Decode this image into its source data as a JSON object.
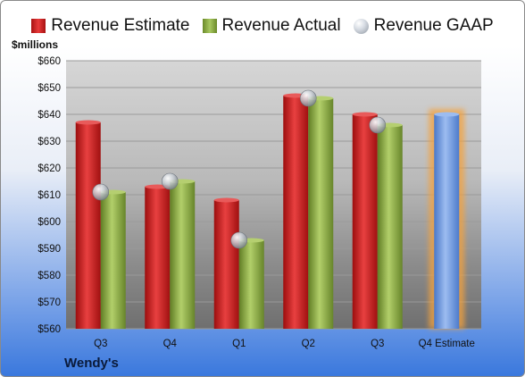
{
  "company": "Wendy's",
  "unit_label": "$millions",
  "colors": {
    "estimate": "#c91f1f",
    "actual": "#8aaa45",
    "gaap": "#b8bec6",
    "forecast": "#6f9be0",
    "forecast_glow": "#f4a23c"
  },
  "chart_data": {
    "type": "bar",
    "categories": [
      "Q3",
      "Q4",
      "Q1",
      "Q2",
      "Q3",
      "Q4 Estimate"
    ],
    "series": [
      {
        "name": "Revenue Estimate",
        "values": [
          637,
          613,
          608,
          647,
          640,
          640
        ]
      },
      {
        "name": "Revenue Actual",
        "values": [
          611,
          615,
          593,
          646,
          636,
          null
        ]
      },
      {
        "name": "Revenue GAAP",
        "values": [
          611,
          615,
          593,
          646,
          636,
          null
        ]
      }
    ],
    "y_ticks": [
      "$560",
      "$570",
      "$580",
      "$590",
      "$600",
      "$610",
      "$620",
      "$630",
      "$640",
      "$650",
      "$660"
    ],
    "ylim": [
      560,
      660
    ],
    "legend": "top",
    "grid": true
  }
}
